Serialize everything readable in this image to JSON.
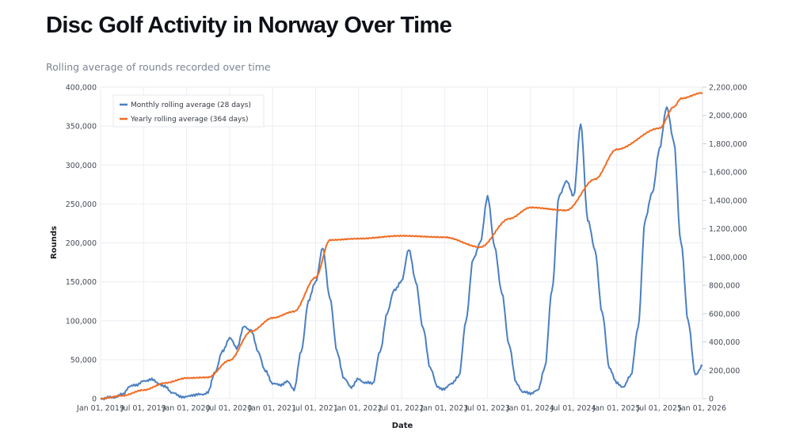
{
  "header": {
    "title": "Disc Golf Activity in Norway Over Time",
    "subtitle": "Rolling average of rounds recorded over time"
  },
  "chart_data": {
    "type": "line",
    "title": "Disc Golf Activity in Norway Over Time",
    "subtitle": "Rolling average of rounds recorded over time",
    "xlabel": "Date",
    "ylabel": "Rounds",
    "y2label": "",
    "grid": true,
    "legend_position": "top-left",
    "xlim": [
      "2019-01-01",
      "2026-01-01"
    ],
    "ylim": [
      0,
      400000
    ],
    "y2lim": [
      0,
      2200000
    ],
    "x_ticks": [
      "Jan 01, 2019",
      "Jul 01, 2019",
      "Jan 01, 2020",
      "Jul 01, 2020",
      "Jan 01, 2021",
      "Jul 01, 2021",
      "Jan 01, 2022",
      "Jul 01, 2022",
      "Jan 01, 2023",
      "Jul 01, 2023",
      "Jan 01, 2024",
      "Jul 01, 2024",
      "Jan 01, 2025",
      "Jul 01, 2025",
      "Jan 01, 2026"
    ],
    "y_ticks": [
      "0",
      "50,000",
      "100,000",
      "150,000",
      "200,000",
      "250,000",
      "300,000",
      "350,000",
      "400,000"
    ],
    "y2_ticks": [
      "0",
      "200,000",
      "400,000",
      "600,000",
      "800,000",
      "1,000,000",
      "1,200,000",
      "1,400,000",
      "1,600,000",
      "1,800,000",
      "2,000,000",
      "2,200,000"
    ],
    "y_tick_values": [
      0,
      50000,
      100000,
      150000,
      200000,
      250000,
      300000,
      350000,
      400000
    ],
    "y2_tick_values": [
      0,
      200000,
      400000,
      600000,
      800000,
      1000000,
      1200000,
      1400000,
      1600000,
      1800000,
      2000000,
      2200000
    ],
    "series": [
      {
        "name": "Monthly rolling average (28 days)",
        "axis": "left",
        "color": "#4a7fc1",
        "x_months": [
          0,
          1,
          2,
          3,
          4,
          5,
          6,
          7,
          8,
          9,
          10,
          11,
          12,
          13,
          14,
          15,
          16,
          17,
          18,
          19,
          20,
          21,
          22,
          23,
          24,
          25,
          26,
          27,
          28,
          29,
          30,
          31,
          32,
          33,
          34,
          35,
          36,
          37,
          38,
          39,
          40,
          41,
          42,
          43,
          44,
          45,
          46,
          47,
          48,
          49,
          50,
          51,
          52,
          53,
          54,
          55,
          56,
          57,
          58,
          59,
          60,
          61,
          62,
          63,
          64,
          65,
          66,
          67,
          68,
          69,
          70,
          71,
          72,
          73,
          74,
          75,
          76,
          77,
          78,
          79,
          80,
          81,
          82,
          83,
          84
        ],
        "values": [
          0,
          1000,
          2000,
          5000,
          15000,
          18000,
          22000,
          25000,
          20000,
          15000,
          8000,
          3000,
          2000,
          5000,
          5000,
          8000,
          35000,
          60000,
          78000,
          65000,
          92000,
          88000,
          60000,
          35000,
          20000,
          17000,
          22000,
          12000,
          60000,
          125000,
          150000,
          193000,
          130000,
          60000,
          25000,
          15000,
          25000,
          20000,
          20000,
          60000,
          110000,
          140000,
          150000,
          192000,
          150000,
          90000,
          40000,
          15000,
          12000,
          20000,
          28000,
          100000,
          180000,
          200000,
          260000,
          195000,
          135000,
          70000,
          20000,
          8000,
          7000,
          10000,
          40000,
          140000,
          260000,
          280000,
          260000,
          352000,
          230000,
          190000,
          110000,
          40000,
          20000,
          15000,
          30000,
          90000,
          230000,
          265000,
          320000,
          375000,
          330000,
          200000,
          100000,
          30000,
          43000
        ]
      },
      {
        "name": "Yearly rolling average (364 days)",
        "axis": "right",
        "color": "#f26b21",
        "x_months": [
          0,
          3,
          6,
          9,
          12,
          15,
          18,
          21,
          24,
          27,
          30,
          32,
          36,
          42,
          48,
          53,
          57,
          60,
          65,
          69,
          72,
          78,
          80,
          81,
          84
        ],
        "values": [
          0,
          20000,
          60000,
          110000,
          145000,
          150000,
          270000,
          475000,
          570000,
          615000,
          855000,
          1120000,
          1130000,
          1150000,
          1140000,
          1070000,
          1270000,
          1350000,
          1330000,
          1550000,
          1760000,
          1910000,
          2060000,
          2120000,
          2160000
        ]
      }
    ]
  }
}
